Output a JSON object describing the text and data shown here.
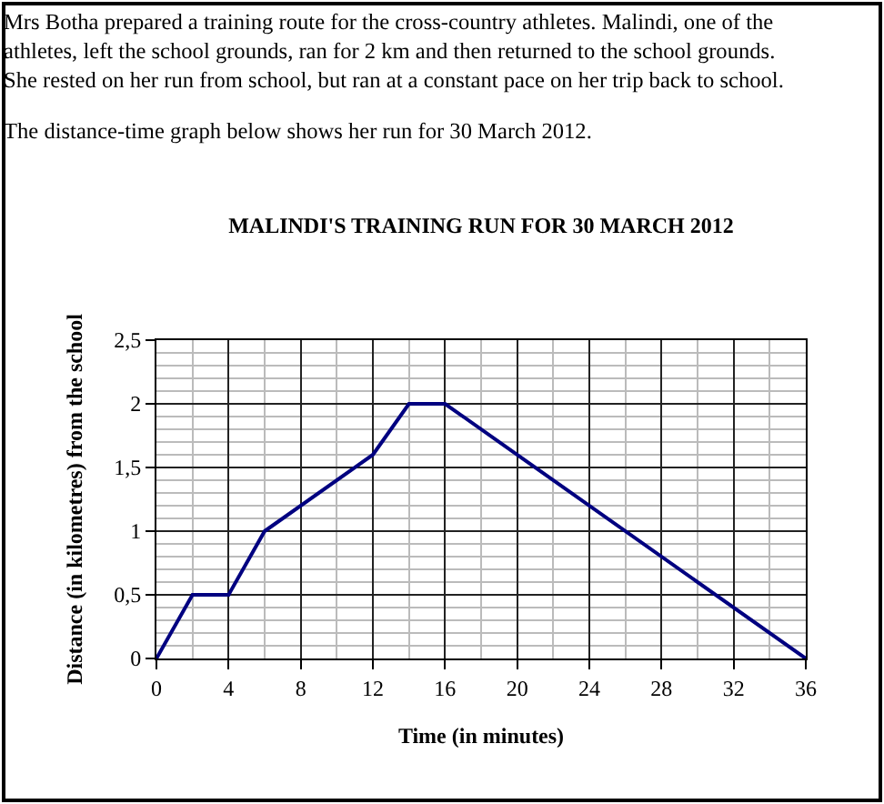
{
  "chart_data": {
    "type": "line",
    "title": "MALINDI'S TRAINING RUN FOR 30 MARCH 2012",
    "annotations": [
      "Mrs Botha prepared a training route for the cross-country athletes. Malindi, one of the",
      "athletes, left the school grounds, ran for 2 km and then returned to the school grounds.",
      "She rested on her run from school, but ran at a constant pace on her trip back to school.",
      "The distance-time graph below shows her run for 30 March 2012."
    ],
    "xlabel": "Time (in minutes)",
    "ylabel": "Distance (in kilometres) from the school",
    "x": [
      0,
      2,
      4,
      6,
      12,
      14,
      16,
      36
    ],
    "series": [
      {
        "color": "#000080",
        "values": [
          0,
          0.5,
          0.5,
          1,
          1.6,
          2,
          2,
          0
        ]
      }
    ],
    "xlim": [
      0,
      36
    ],
    "xticks": [
      0,
      4,
      8,
      12,
      16,
      20,
      24,
      28,
      32,
      36
    ],
    "ylim": [
      0,
      2.5
    ],
    "yticks": [
      0,
      {
        "value": 0.5,
        "label": "0,5"
      },
      1,
      {
        "value": 1.5,
        "label": "1,5"
      },
      2,
      {
        "value": 2.5,
        "label": "2,5"
      }
    ],
    "grid": true,
    "marker": "none",
    "line_style": "solid"
  }
}
